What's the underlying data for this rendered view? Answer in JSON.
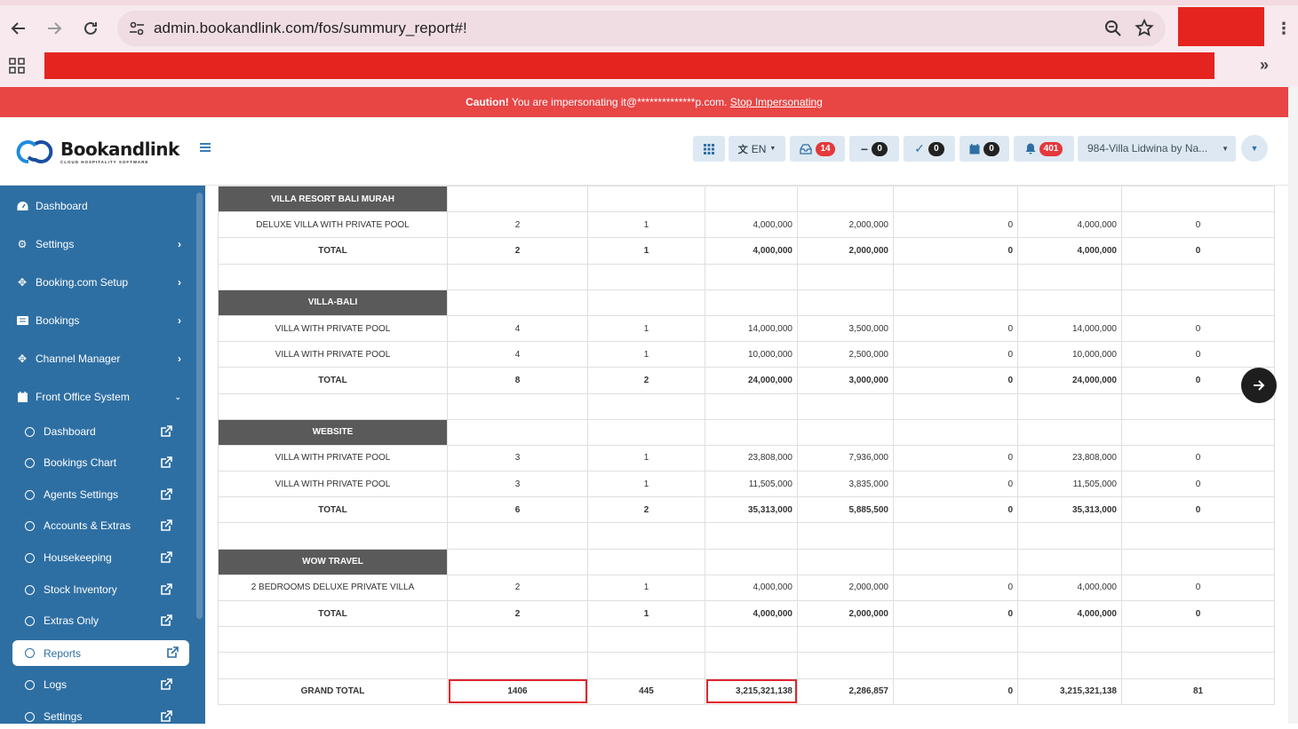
{
  "browser": {
    "url": "admin.bookandlink.com/fos/summury_report#!"
  },
  "caution": {
    "prefix": "Caution!",
    "message": " You are impersonating it@**************p.com. ",
    "link": "Stop Impersonating"
  },
  "header": {
    "brand": "Bookandlink",
    "tagline": "CLOUD HOSPITALITY SOFTWARE",
    "lang": "EN",
    "messages_count": "14",
    "minus_count": "0",
    "check_count": "0",
    "calendar_count": "0",
    "bell_count": "401",
    "hotel": "984-Villa Lidwina by Na...",
    "accent": "#2e6fa3"
  },
  "sidebar": {
    "items": [
      {
        "label": "Dashboard",
        "icon": "dashboard-icon"
      },
      {
        "label": "Settings",
        "icon": "gear-icon"
      },
      {
        "label": "Booking.com Setup",
        "icon": "move-icon"
      },
      {
        "label": "Bookings",
        "icon": "list-icon"
      },
      {
        "label": "Channel Manager",
        "icon": "move-icon"
      },
      {
        "label": "Front Office System",
        "icon": "calendar-icon"
      }
    ],
    "subitems": [
      "Dashboard",
      "Bookings Chart",
      "Agents Settings",
      "Accounts & Extras",
      "Housekeeping",
      "Stock Inventory",
      "Extras Only",
      "Reports",
      "Logs",
      "Settings"
    ],
    "active_subitem": "Reports"
  },
  "report": {
    "groups": [
      {
        "name": "VILLA RESORT BALI MURAH",
        "rows": [
          [
            "DELUXE VILLA WITH PRIVATE POOL",
            "2",
            "1",
            "4,000,000",
            "2,000,000",
            "0",
            "4,000,000",
            "0"
          ]
        ],
        "total": [
          "TOTAL",
          "2",
          "1",
          "4,000,000",
          "2,000,000",
          "0",
          "4,000,000",
          "0"
        ]
      },
      {
        "name": "VILLA-BALI",
        "rows": [
          [
            "VILLA WITH PRIVATE POOL",
            "4",
            "1",
            "14,000,000",
            "3,500,000",
            "0",
            "14,000,000",
            "0"
          ],
          [
            "VILLA WITH PRIVATE POOL",
            "4",
            "1",
            "10,000,000",
            "2,500,000",
            "0",
            "10,000,000",
            "0"
          ]
        ],
        "total": [
          "TOTAL",
          "8",
          "2",
          "24,000,000",
          "3,000,000",
          "0",
          "24,000,000",
          "0"
        ]
      },
      {
        "name": "WEBSITE",
        "rows": [
          [
            "VILLA WITH PRIVATE POOL",
            "3",
            "1",
            "23,808,000",
            "7,936,000",
            "0",
            "23,808,000",
            "0"
          ],
          [
            "VILLA WITH PRIVATE POOL",
            "3",
            "1",
            "11,505,000",
            "3,835,000",
            "0",
            "11,505,000",
            "0"
          ]
        ],
        "total": [
          "TOTAL",
          "6",
          "2",
          "35,313,000",
          "5,885,500",
          "0",
          "35,313,000",
          "0"
        ]
      },
      {
        "name": "WOW TRAVEL",
        "rows": [
          [
            "2 BEDROOMS DELUXE PRIVATE VILLA",
            "2",
            "1",
            "4,000,000",
            "2,000,000",
            "0",
            "4,000,000",
            "0"
          ]
        ],
        "total": [
          "TOTAL",
          "2",
          "1",
          "4,000,000",
          "2,000,000",
          "0",
          "4,000,000",
          "0"
        ]
      }
    ],
    "grand_total": [
      "GRAND TOTAL",
      "1406",
      "445",
      "3,215,321,138",
      "2,286,857",
      "0",
      "3,215,321,138",
      "81"
    ],
    "highlight_color": "#e0242b"
  }
}
